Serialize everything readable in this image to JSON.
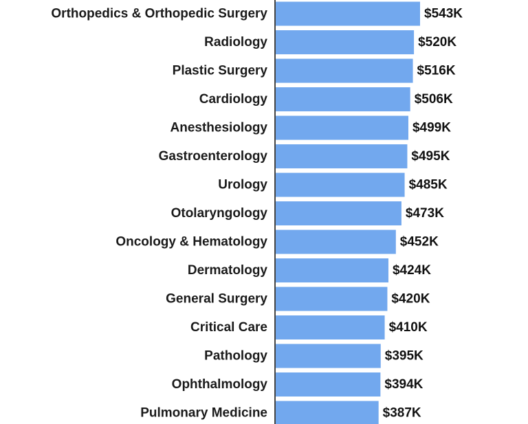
{
  "chart_data": {
    "type": "bar",
    "orientation": "horizontal",
    "categories": [
      "Orthopedics & Orthopedic Surgery",
      "Radiology",
      "Plastic Surgery",
      "Cardiology",
      "Anesthesiology",
      "Gastroenterology",
      "Urology",
      "Otolaryngology",
      "Oncology & Hematology",
      "Dermatology",
      "General Surgery",
      "Critical Care",
      "Pathology",
      "Ophthalmology",
      "Pulmonary Medicine"
    ],
    "values": [
      543,
      520,
      516,
      506,
      499,
      495,
      485,
      473,
      452,
      424,
      420,
      410,
      395,
      394,
      387
    ],
    "value_labels": [
      "$543K",
      "$520K",
      "$516K",
      "$506K",
      "$499K",
      "$495K",
      "$485K",
      "$473K",
      "$452K",
      "$424K",
      "$420K",
      "$410K",
      "$395K",
      "$394K",
      "$387K"
    ],
    "unit": "$K",
    "grid": false,
    "colors": {
      "bar": "#72a8ee",
      "axis": "#444444",
      "text": "#1a1a1a"
    }
  }
}
